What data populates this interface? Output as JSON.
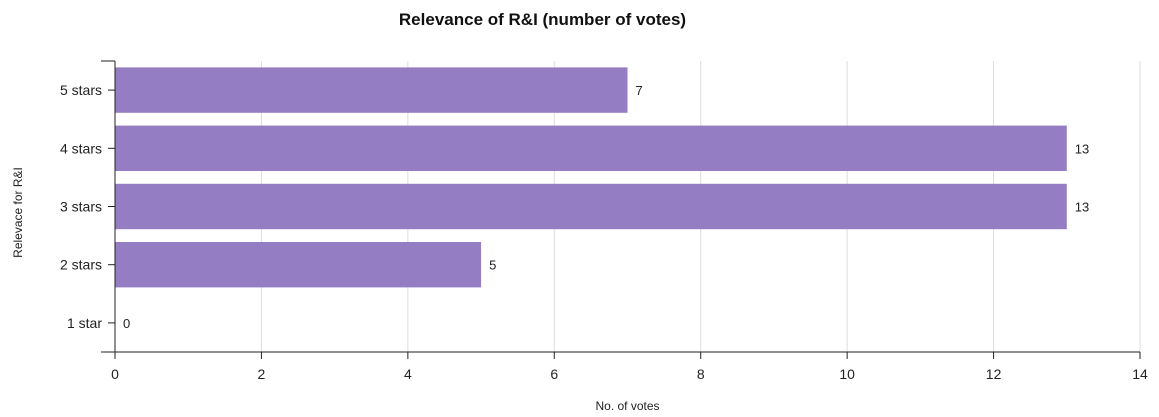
{
  "chart_data": {
    "type": "bar",
    "orientation": "horizontal",
    "title": "Relevance of R&I (number of votes)",
    "xlabel": "No. of votes",
    "ylabel": "Relevace for R&I",
    "categories": [
      "5 stars",
      "4 stars",
      "3 stars",
      "2 stars",
      "1 star"
    ],
    "values": [
      7,
      13,
      13,
      5,
      0
    ],
    "xlim": [
      0,
      14
    ],
    "xticks": [
      0,
      2,
      4,
      6,
      8,
      10,
      12,
      14
    ],
    "grid": true,
    "legend": "none",
    "bar_color": "#957dc3",
    "grid_color": "#dddddd",
    "axis_color": "#222222"
  }
}
